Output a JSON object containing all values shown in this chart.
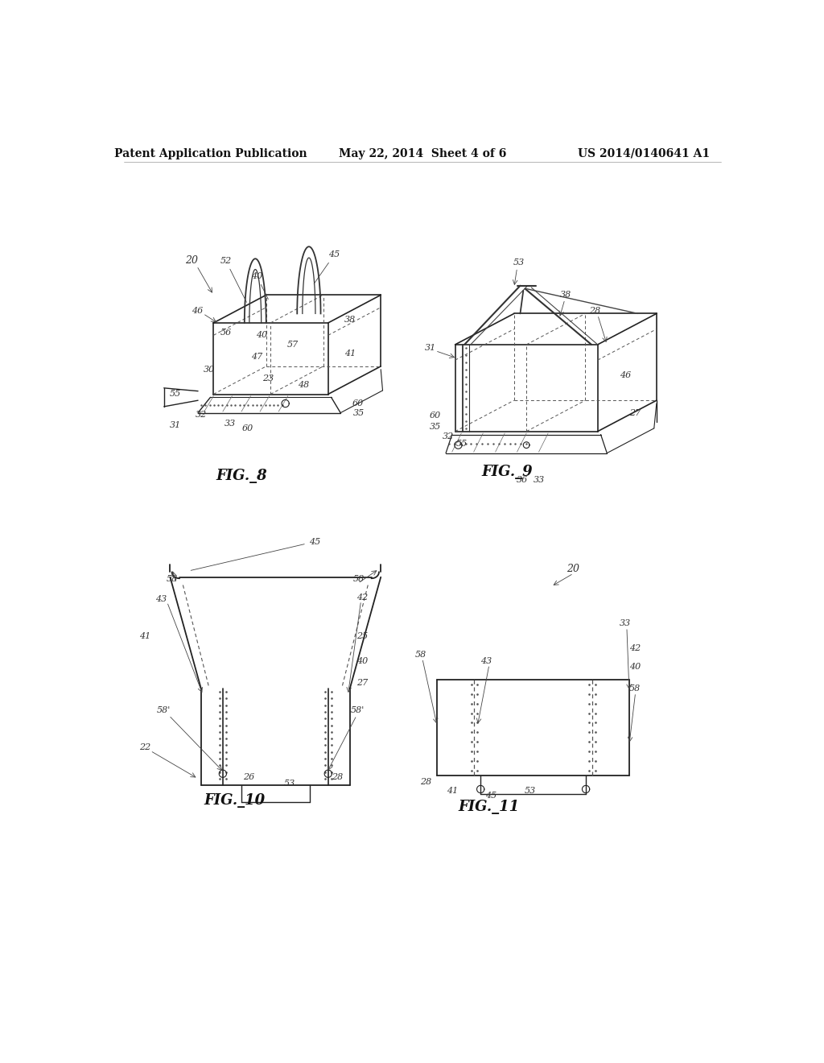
{
  "bg_color": "#ffffff",
  "header_left": "Patent Application Publication",
  "header_mid": "May 22, 2014  Sheet 4 of 6",
  "header_right": "US 2014/0140641 A1",
  "page_width": 10.24,
  "page_height": 13.2
}
